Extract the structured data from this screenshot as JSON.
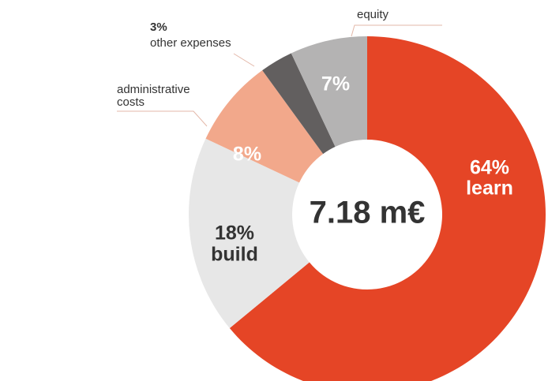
{
  "chart_data": {
    "type": "donut",
    "center_label": "7.18 m€",
    "categories": [
      "learn",
      "build",
      "administrative costs",
      "other expenses",
      "equity"
    ],
    "values": [
      64,
      18,
      8,
      3,
      7
    ],
    "value_labels": [
      "64%",
      "18%",
      "8%",
      "3%",
      "7%"
    ],
    "colors": [
      "#e54526",
      "#e7e7e7",
      "#f2a88b",
      "#625f5f",
      "#b4b3b3"
    ]
  }
}
